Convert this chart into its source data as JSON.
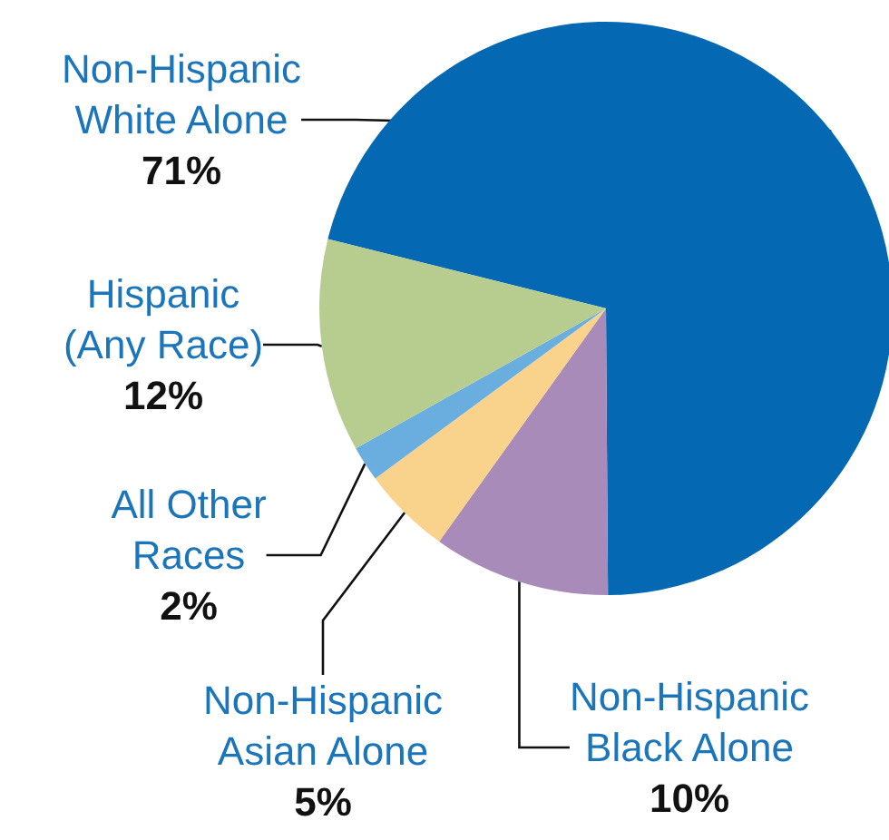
{
  "chart_data": {
    "type": "pie",
    "categories": [
      "Non-Hispanic White Alone",
      "Non-Hispanic Black Alone",
      "Non-Hispanic Asian Alone",
      "All Other Races",
      "Hispanic (Any Race)"
    ],
    "values": [
      71,
      10,
      5,
      2,
      12
    ],
    "value_labels": [
      "71%",
      "10%",
      "5%",
      "2%",
      "12%"
    ],
    "colors": [
      "#0468b3",
      "#a98bba",
      "#f9d38c",
      "#6aaee0",
      "#b7cc8f"
    ],
    "legend": false
  }
}
